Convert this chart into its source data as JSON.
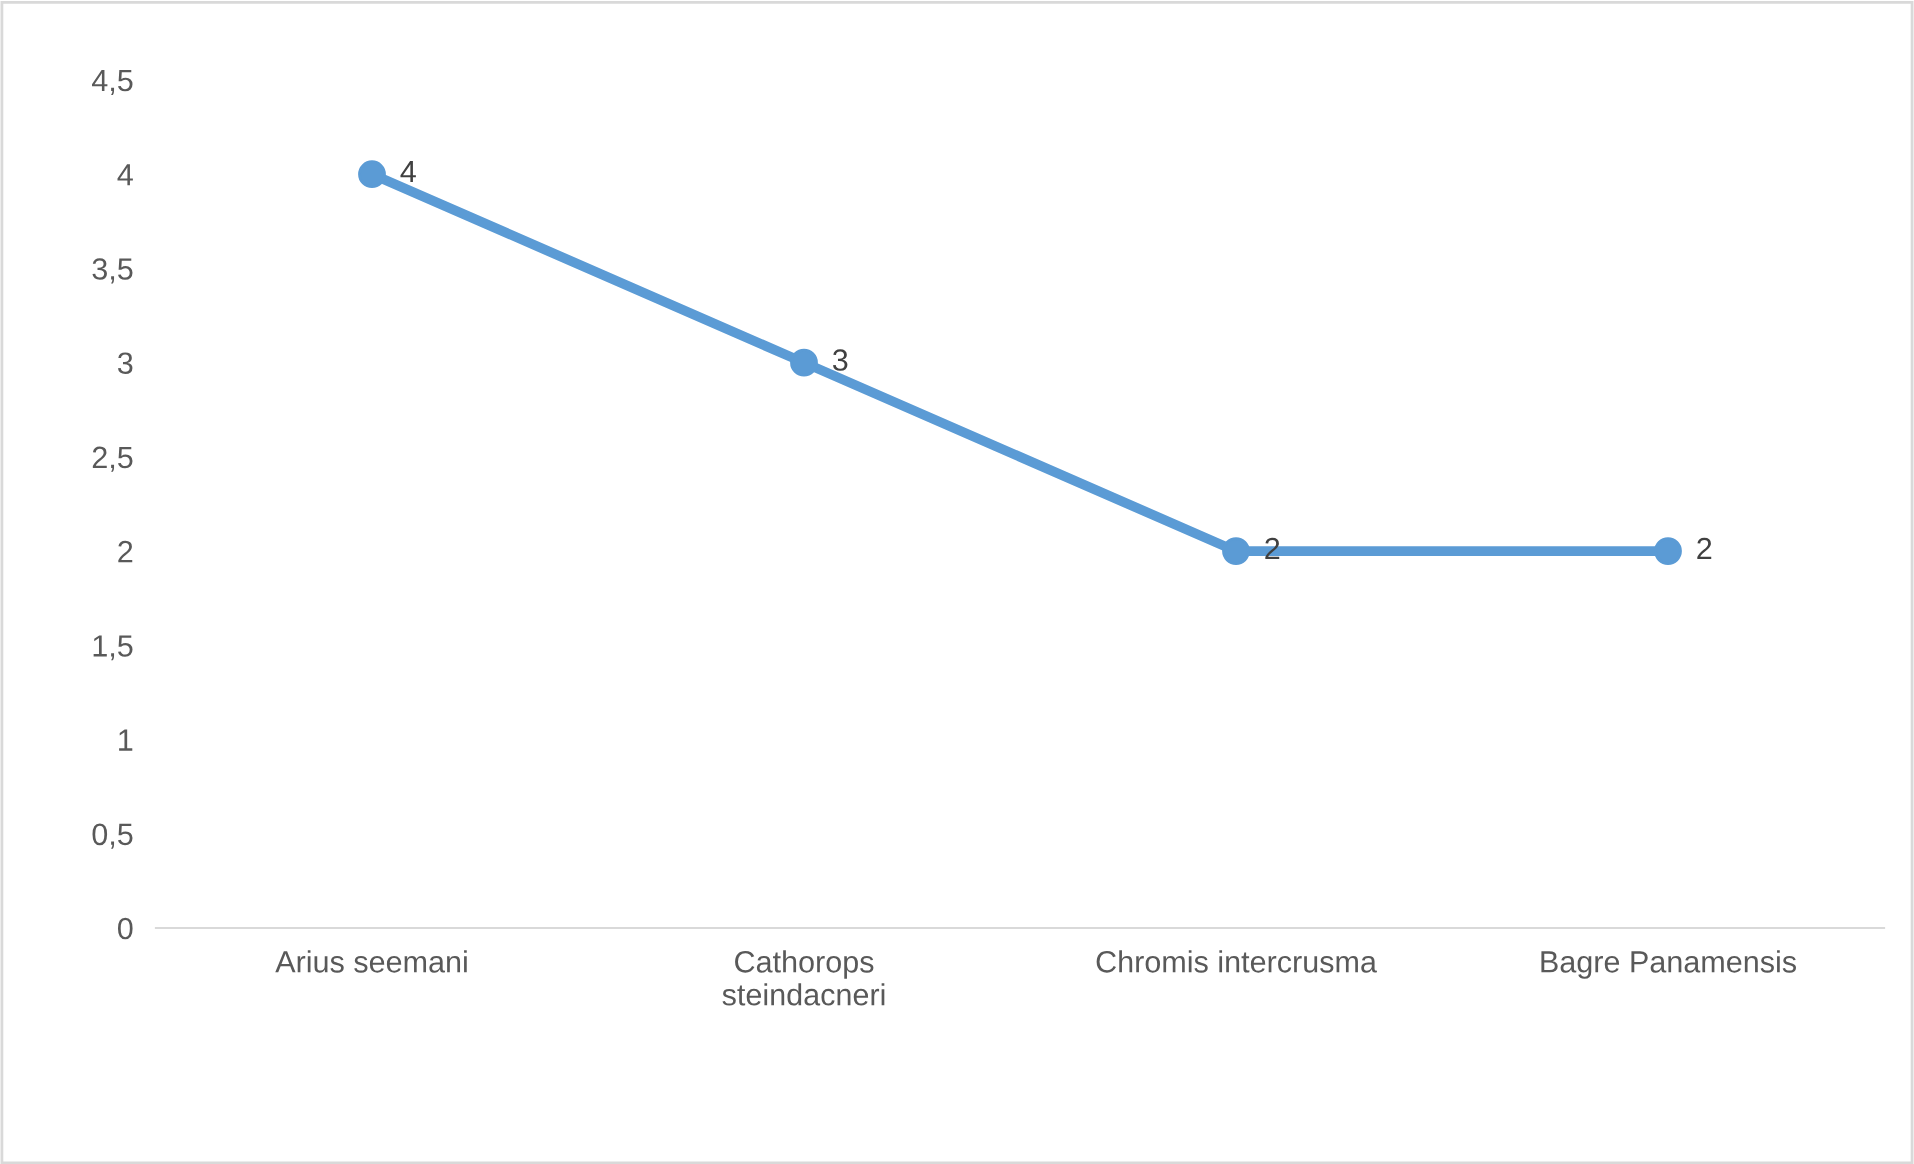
{
  "chart_data": {
    "type": "line",
    "categories": [
      "Arius seemani",
      "Cathorops\nsteindacneri",
      "Chromis intercrusma",
      "Bagre Panamensis"
    ],
    "series": [
      {
        "color": "#5b9bd5",
        "values": [
          4,
          3,
          2,
          2
        ]
      }
    ],
    "ylim": [
      0,
      4.5
    ],
    "yticks": [
      0,
      {
        "value": 0.5,
        "label": "0,5"
      },
      1,
      {
        "value": 1.5,
        "label": "1,5"
      },
      2,
      {
        "value": 2.5,
        "label": "2,5"
      },
      3,
      {
        "value": 3.5,
        "label": "3,5"
      },
      4,
      {
        "value": 4.5,
        "label": "4,5"
      }
    ],
    "marker": "circle",
    "line_style": "solid",
    "data_labels": true,
    "grid": false,
    "legend": false
  }
}
